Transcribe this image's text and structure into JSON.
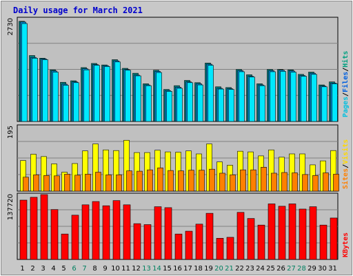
{
  "chart_data": {
    "type": "bar",
    "title": "Daily usage for March 2021",
    "categories": [
      "1",
      "2",
      "3",
      "4",
      "5",
      "6",
      "7",
      "8",
      "9",
      "10",
      "11",
      "12",
      "13",
      "14",
      "15",
      "16",
      "17",
      "18",
      "19",
      "20",
      "21",
      "22",
      "23",
      "24",
      "25",
      "26",
      "27",
      "28",
      "29",
      "30",
      "31"
    ],
    "weekend_days": [
      "6",
      "7",
      "13",
      "14",
      "20",
      "21",
      "27",
      "28"
    ],
    "panels": [
      {
        "ymax_label": "2730",
        "ylim": [
          0,
          2730
        ],
        "axis_labels": [
          "Pages",
          "/",
          "Files",
          "/",
          "Hits"
        ],
        "axis_label_colors": [
          "#00c0e0",
          "#000000",
          "#0060e0",
          "#000000",
          "#00a080"
        ],
        "series": [
          {
            "name": "Hits",
            "color": "#008080",
            "values": [
              2660,
              1750,
              1680,
              1370,
              1040,
              1080,
              1430,
              1540,
              1500,
              1640,
              1410,
              1280,
              1000,
              1360,
              850,
              950,
              1090,
              1030,
              1550,
              920,
              900,
              1380,
              1240,
              1000,
              1380,
              1380,
              1370,
              1250,
              1310,
              970,
              1050
            ]
          },
          {
            "name": "Files",
            "color": "#0090e0",
            "values": [
              2640,
              1700,
              1660,
              1340,
              990,
              1050,
              1400,
              1510,
              1480,
              1610,
              1380,
              1230,
              970,
              1330,
              820,
              910,
              1050,
              1000,
              1520,
              880,
              870,
              1350,
              1200,
              970,
              1350,
              1360,
              1340,
              1220,
              1280,
              940,
              1020
            ]
          },
          {
            "name": "Pages",
            "color": "#00e8ff",
            "values": [
              2600,
              1680,
              1640,
              1310,
              960,
              1030,
              1370,
              1490,
              1460,
              1580,
              1360,
              1210,
              950,
              1300,
              800,
              880,
              1030,
              970,
              1490,
              860,
              850,
              1320,
              1180,
              950,
              1320,
              1330,
              1310,
              1200,
              1250,
              920,
              1000
            ]
          }
        ]
      },
      {
        "ymax_label": "195",
        "ylim": [
          0,
          195
        ],
        "axis_labels": [
          "Sites",
          "/",
          "Visits"
        ],
        "axis_label_colors": [
          "#ff8000",
          "#000000",
          "#ffd800"
        ],
        "series": [
          {
            "name": "Visits",
            "color": "#ffff00",
            "values": [
              92,
              111,
              104,
              82,
              57,
              83,
              121,
              142,
              124,
              122,
              153,
              116,
              116,
              123,
              118,
              117,
              121,
              112,
              142,
              88,
              78,
              120,
              118,
              106,
              124,
              102,
              112,
              112,
              79,
              91,
              122
            ]
          },
          {
            "name": "Sites",
            "color": "#ff8000",
            "values": [
              42,
              49,
              47,
              46,
              51,
              48,
              51,
              57,
              49,
              49,
              61,
              60,
              64,
              70,
              62,
              61,
              63,
              63,
              66,
              54,
              49,
              64,
              64,
              72,
              54,
              56,
              55,
              50,
              47,
              55,
              51
            ]
          }
        ]
      },
      {
        "ymax_label": "137720",
        "ylim": [
          0,
          137720
        ],
        "axis_labels": [
          "KBytes"
        ],
        "axis_label_colors": [
          "#ff0000"
        ],
        "series": [
          {
            "name": "KBytes",
            "color": "#ff0000",
            "values": [
              126000,
              132000,
              137720,
              106000,
              54000,
              94000,
              116000,
              123000,
              114000,
              125000,
              116000,
              76000,
              74000,
              112000,
              110000,
              54000,
              60000,
              75000,
              98000,
              45000,
              47000,
              100000,
              87000,
              73000,
              118000,
              113000,
              118000,
              107000,
              112000,
              73000,
              88000
            ]
          }
        ]
      }
    ]
  }
}
